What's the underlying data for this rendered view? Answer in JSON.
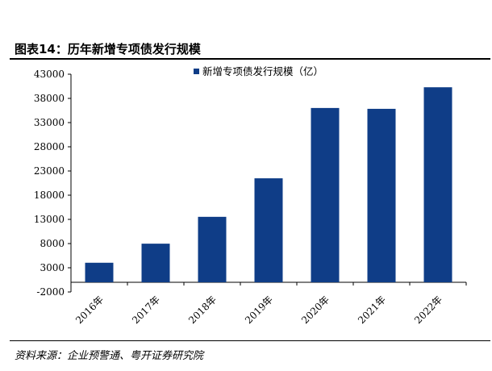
{
  "figure": {
    "title": "图表14：历年新增专项债发行规模",
    "source": "资料来源：企业预警通、粤开证券研究院"
  },
  "colors": {
    "bar": "#0f3d87",
    "axis": "#000000"
  },
  "chart_data": {
    "type": "bar",
    "categories": [
      "2016年",
      "2017年",
      "2018年",
      "2019年",
      "2020年",
      "2021年",
      "2022年"
    ],
    "series": [
      {
        "name": "新增专项债发行规模（亿）",
        "values": [
          4037,
          7978,
          13527,
          21487,
          36019,
          35844,
          40300
        ]
      }
    ],
    "ylim": [
      -2000,
      43000
    ],
    "yticks": [
      -2000,
      3000,
      8000,
      13000,
      18000,
      23000,
      28000,
      33000,
      38000,
      43000
    ],
    "xlabel": "",
    "ylabel": "",
    "legend_position": "top-center",
    "grid": false
  }
}
